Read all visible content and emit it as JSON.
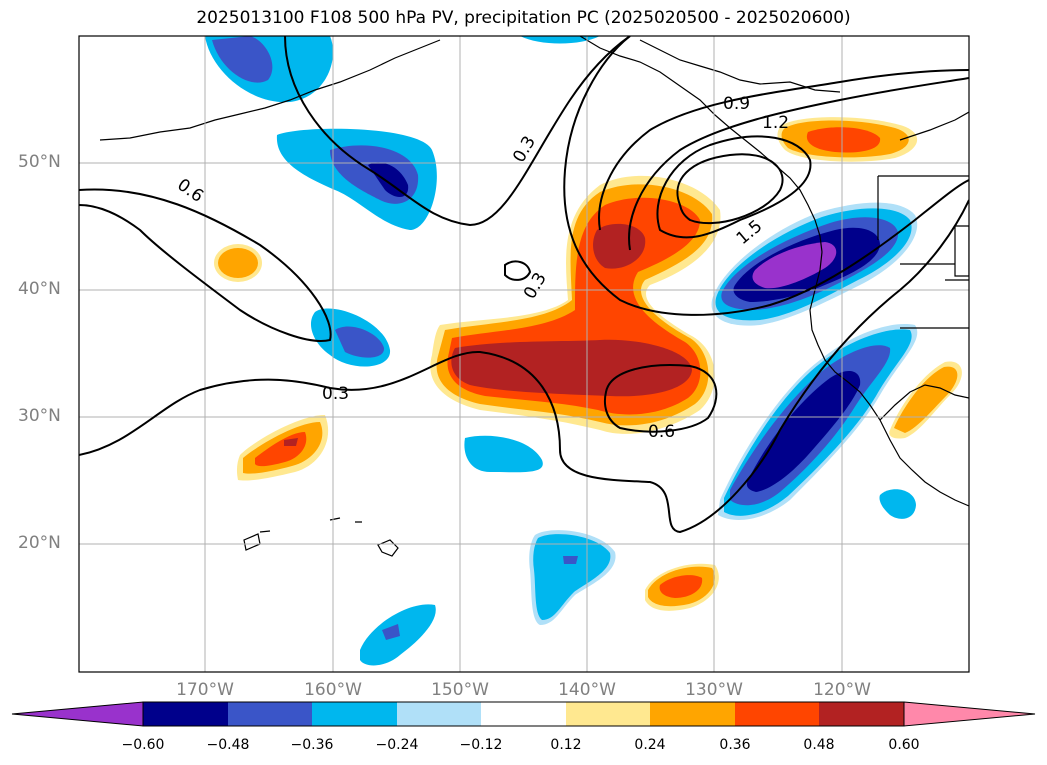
{
  "title": "2025013100 F108 500 hPa PV, precipitation PC (2025020500 - 2025020600)",
  "lat_labels": [
    "50°N",
    "40°N",
    "30°N",
    "20°N"
  ],
  "lon_labels": [
    "170°W",
    "160°W",
    "150°W",
    "140°W",
    "130°W",
    "120°W"
  ],
  "contour_labels": [
    "0.3",
    "0.6",
    "0.9",
    "1.2",
    "1.5",
    "0.3",
    "0.3",
    "0.6"
  ],
  "colorbar": {
    "ticks": [
      "−0.60",
      "−0.48",
      "−0.36",
      "−0.24",
      "−0.12",
      "0.12",
      "0.24",
      "0.36",
      "0.48",
      "0.60"
    ],
    "colors": [
      "#9932cc",
      "#00008b",
      "#3a55c8",
      "#00b7ee",
      "#b0e0f8",
      "#ffffff",
      "#ffe890",
      "#ffa500",
      "#ff4500",
      "#b22222",
      "#ff88aa"
    ]
  },
  "palette": {
    "purple": "#9932cc",
    "navy": "#00008b",
    "blue": "#3a55c8",
    "cyan": "#00b7ee",
    "lightblue": "#b0e0f8",
    "yellow": "#ffe890",
    "orange": "#ffa500",
    "redorange": "#ff4500",
    "darkred": "#b22222"
  }
}
